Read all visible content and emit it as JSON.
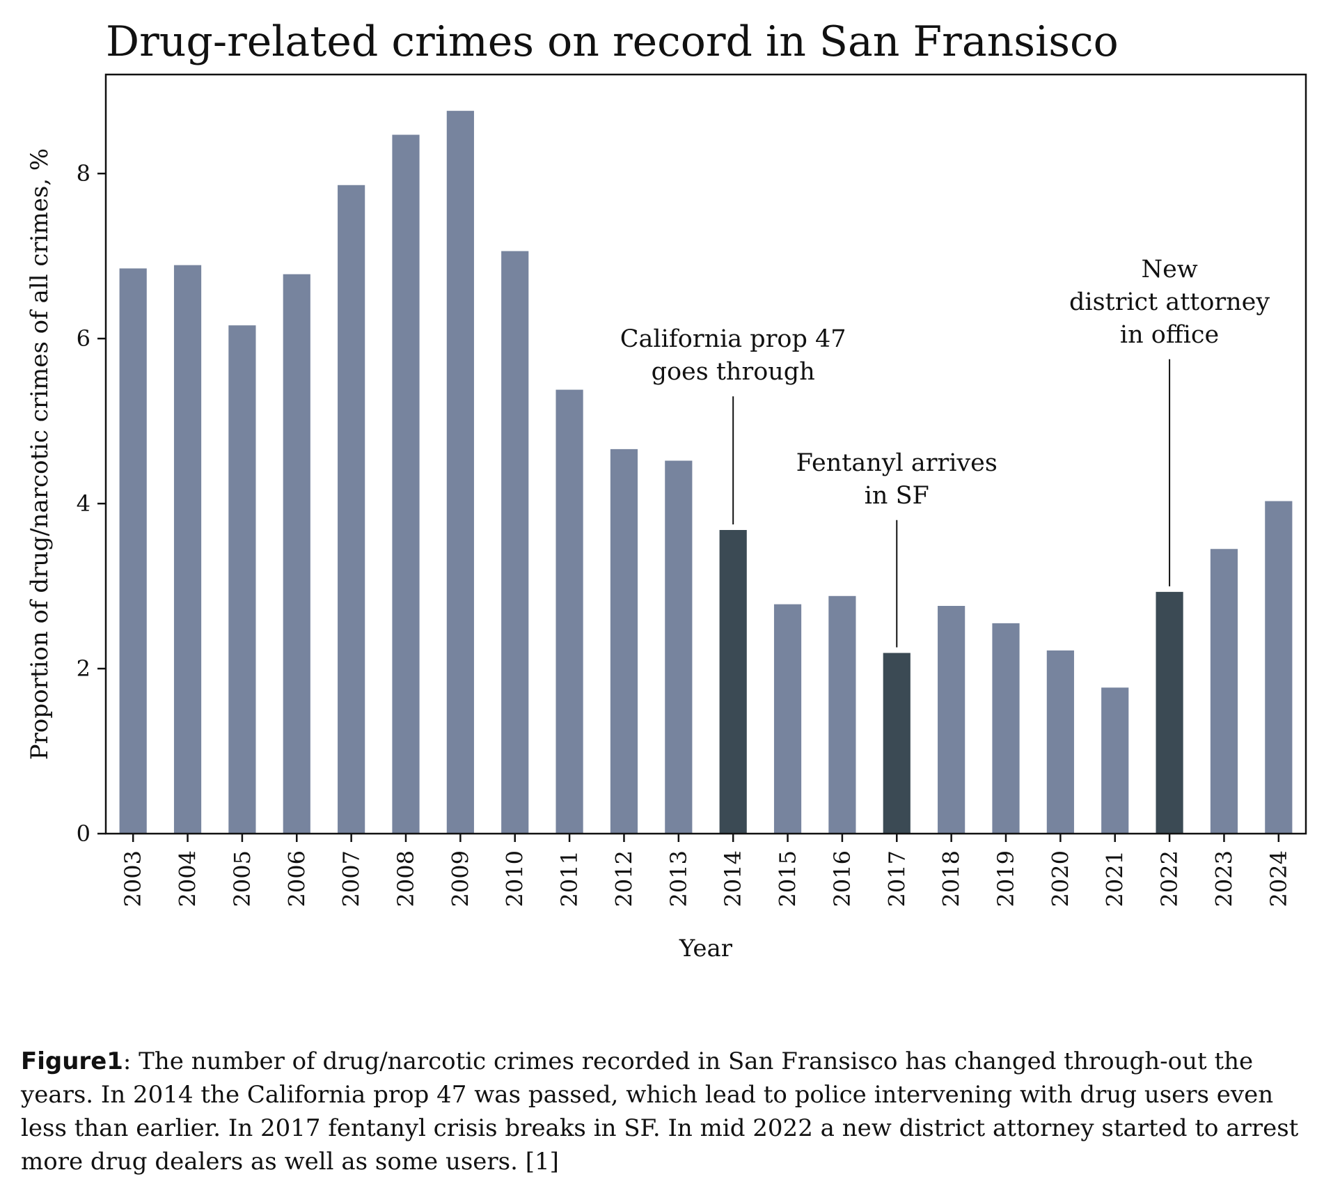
{
  "chart_data": {
    "type": "bar",
    "title": "Drug-related crimes on record in San Fransisco",
    "xlabel": "Year",
    "ylabel": "Proportion of drug/narcotic crimes of all crimes, %",
    "categories": [
      "2003",
      "2004",
      "2005",
      "2006",
      "2007",
      "2008",
      "2009",
      "2010",
      "2011",
      "2012",
      "2013",
      "2014",
      "2015",
      "2016",
      "2017",
      "2018",
      "2019",
      "2020",
      "2021",
      "2022",
      "2023",
      "2024"
    ],
    "values": [
      6.85,
      6.89,
      6.16,
      6.78,
      7.86,
      8.47,
      8.76,
      7.06,
      5.38,
      4.66,
      4.52,
      3.68,
      2.78,
      2.88,
      2.19,
      2.76,
      2.55,
      2.22,
      1.77,
      2.93,
      3.45,
      4.03
    ],
    "yticks": [
      0,
      2,
      4,
      6,
      8
    ],
    "ylim": [
      0,
      9.2
    ],
    "grid": false,
    "colors": {
      "default_bar": "#77849e",
      "highlight_bar": "#3b4a54"
    },
    "highlighted": [
      "2014",
      "2017",
      "2022"
    ],
    "annotations": [
      {
        "target": "2014",
        "lines": [
          "California prop 47",
          "goes through"
        ],
        "line_top": 5.3
      },
      {
        "target": "2017",
        "lines": [
          "Fentanyl arrives",
          "in SF"
        ],
        "line_top": 3.8
      },
      {
        "target": "2022",
        "lines": [
          "New",
          "district attorney",
          "in office"
        ],
        "line_top": 5.75
      }
    ]
  },
  "caption": {
    "label": "Figure1",
    "text": ": The number of drug/narcotic crimes recorded in San Fransisco has changed through-out the years. In 2014 the California prop 47 was passed, which lead to police intervening with drug users even less than earlier. In 2017 fentanyl crisis breaks in SF. In mid 2022 a new district attorney started to arrest more drug dealers as well as some users. [1]"
  }
}
